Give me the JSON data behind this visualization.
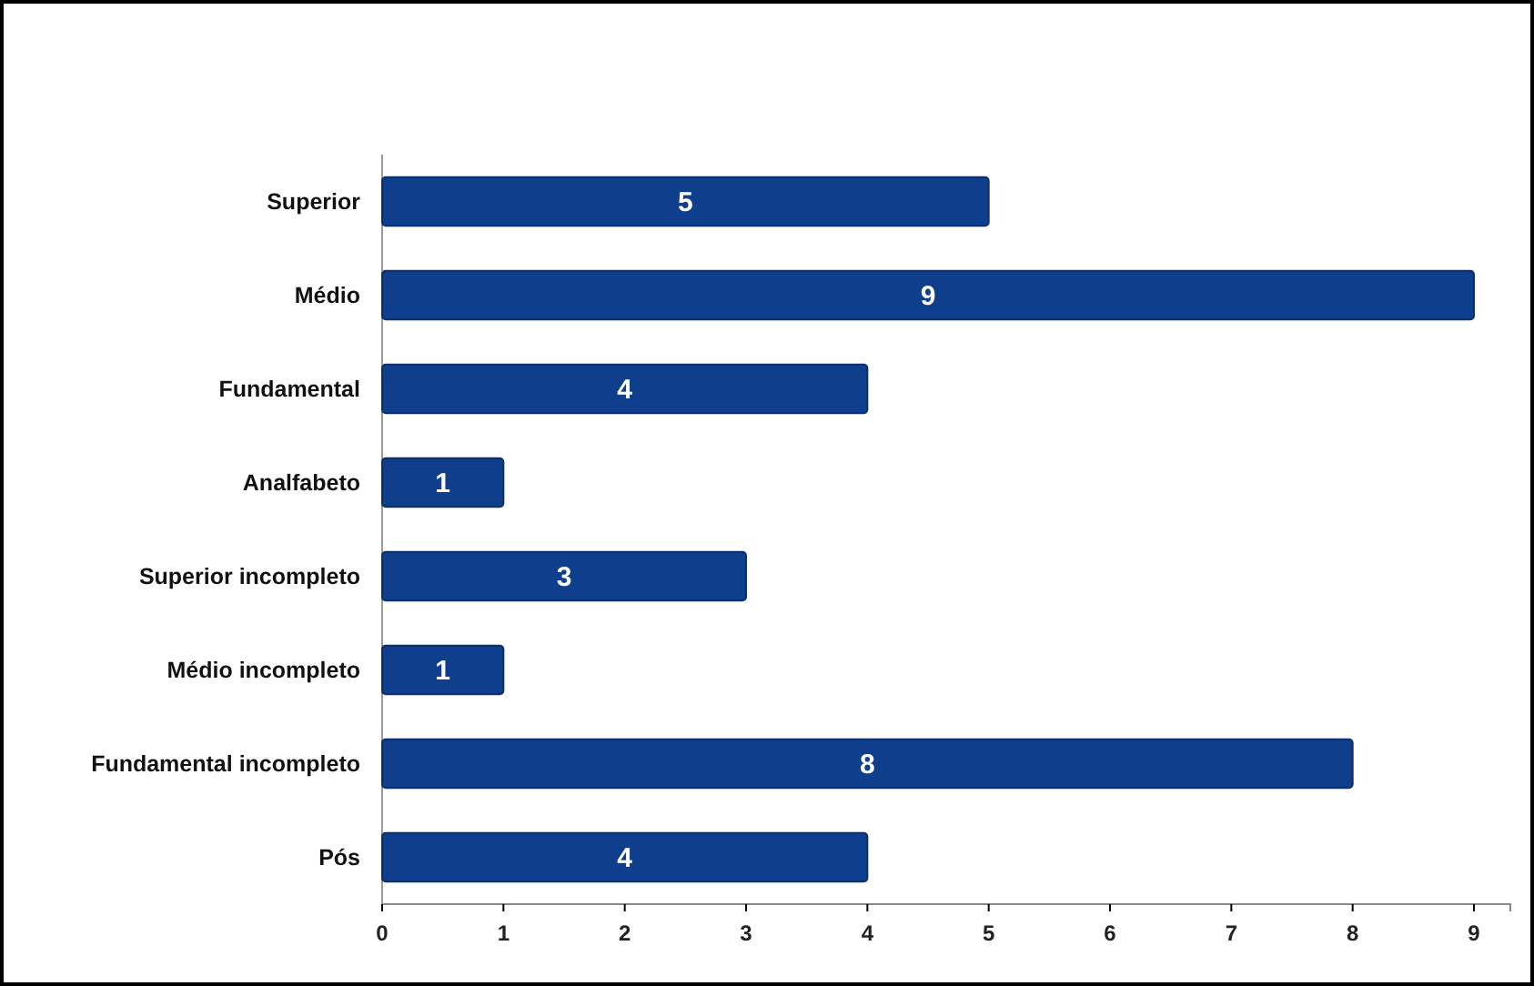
{
  "chart_data": {
    "type": "bar",
    "orientation": "horizontal",
    "categories": [
      "Superior",
      "Médio",
      "Fundamental",
      "Analfabeto",
      "Superior incompleto",
      "Médio incompleto",
      "Fundamental incompleto",
      "Pós"
    ],
    "values": [
      5,
      9,
      4,
      1,
      3,
      1,
      8,
      4
    ],
    "color": "#0f3f8c",
    "xlim": [
      0,
      9.3
    ],
    "xticks": [
      0,
      1,
      2,
      3,
      4,
      5,
      6,
      7,
      8,
      9
    ],
    "data_labels": true
  }
}
